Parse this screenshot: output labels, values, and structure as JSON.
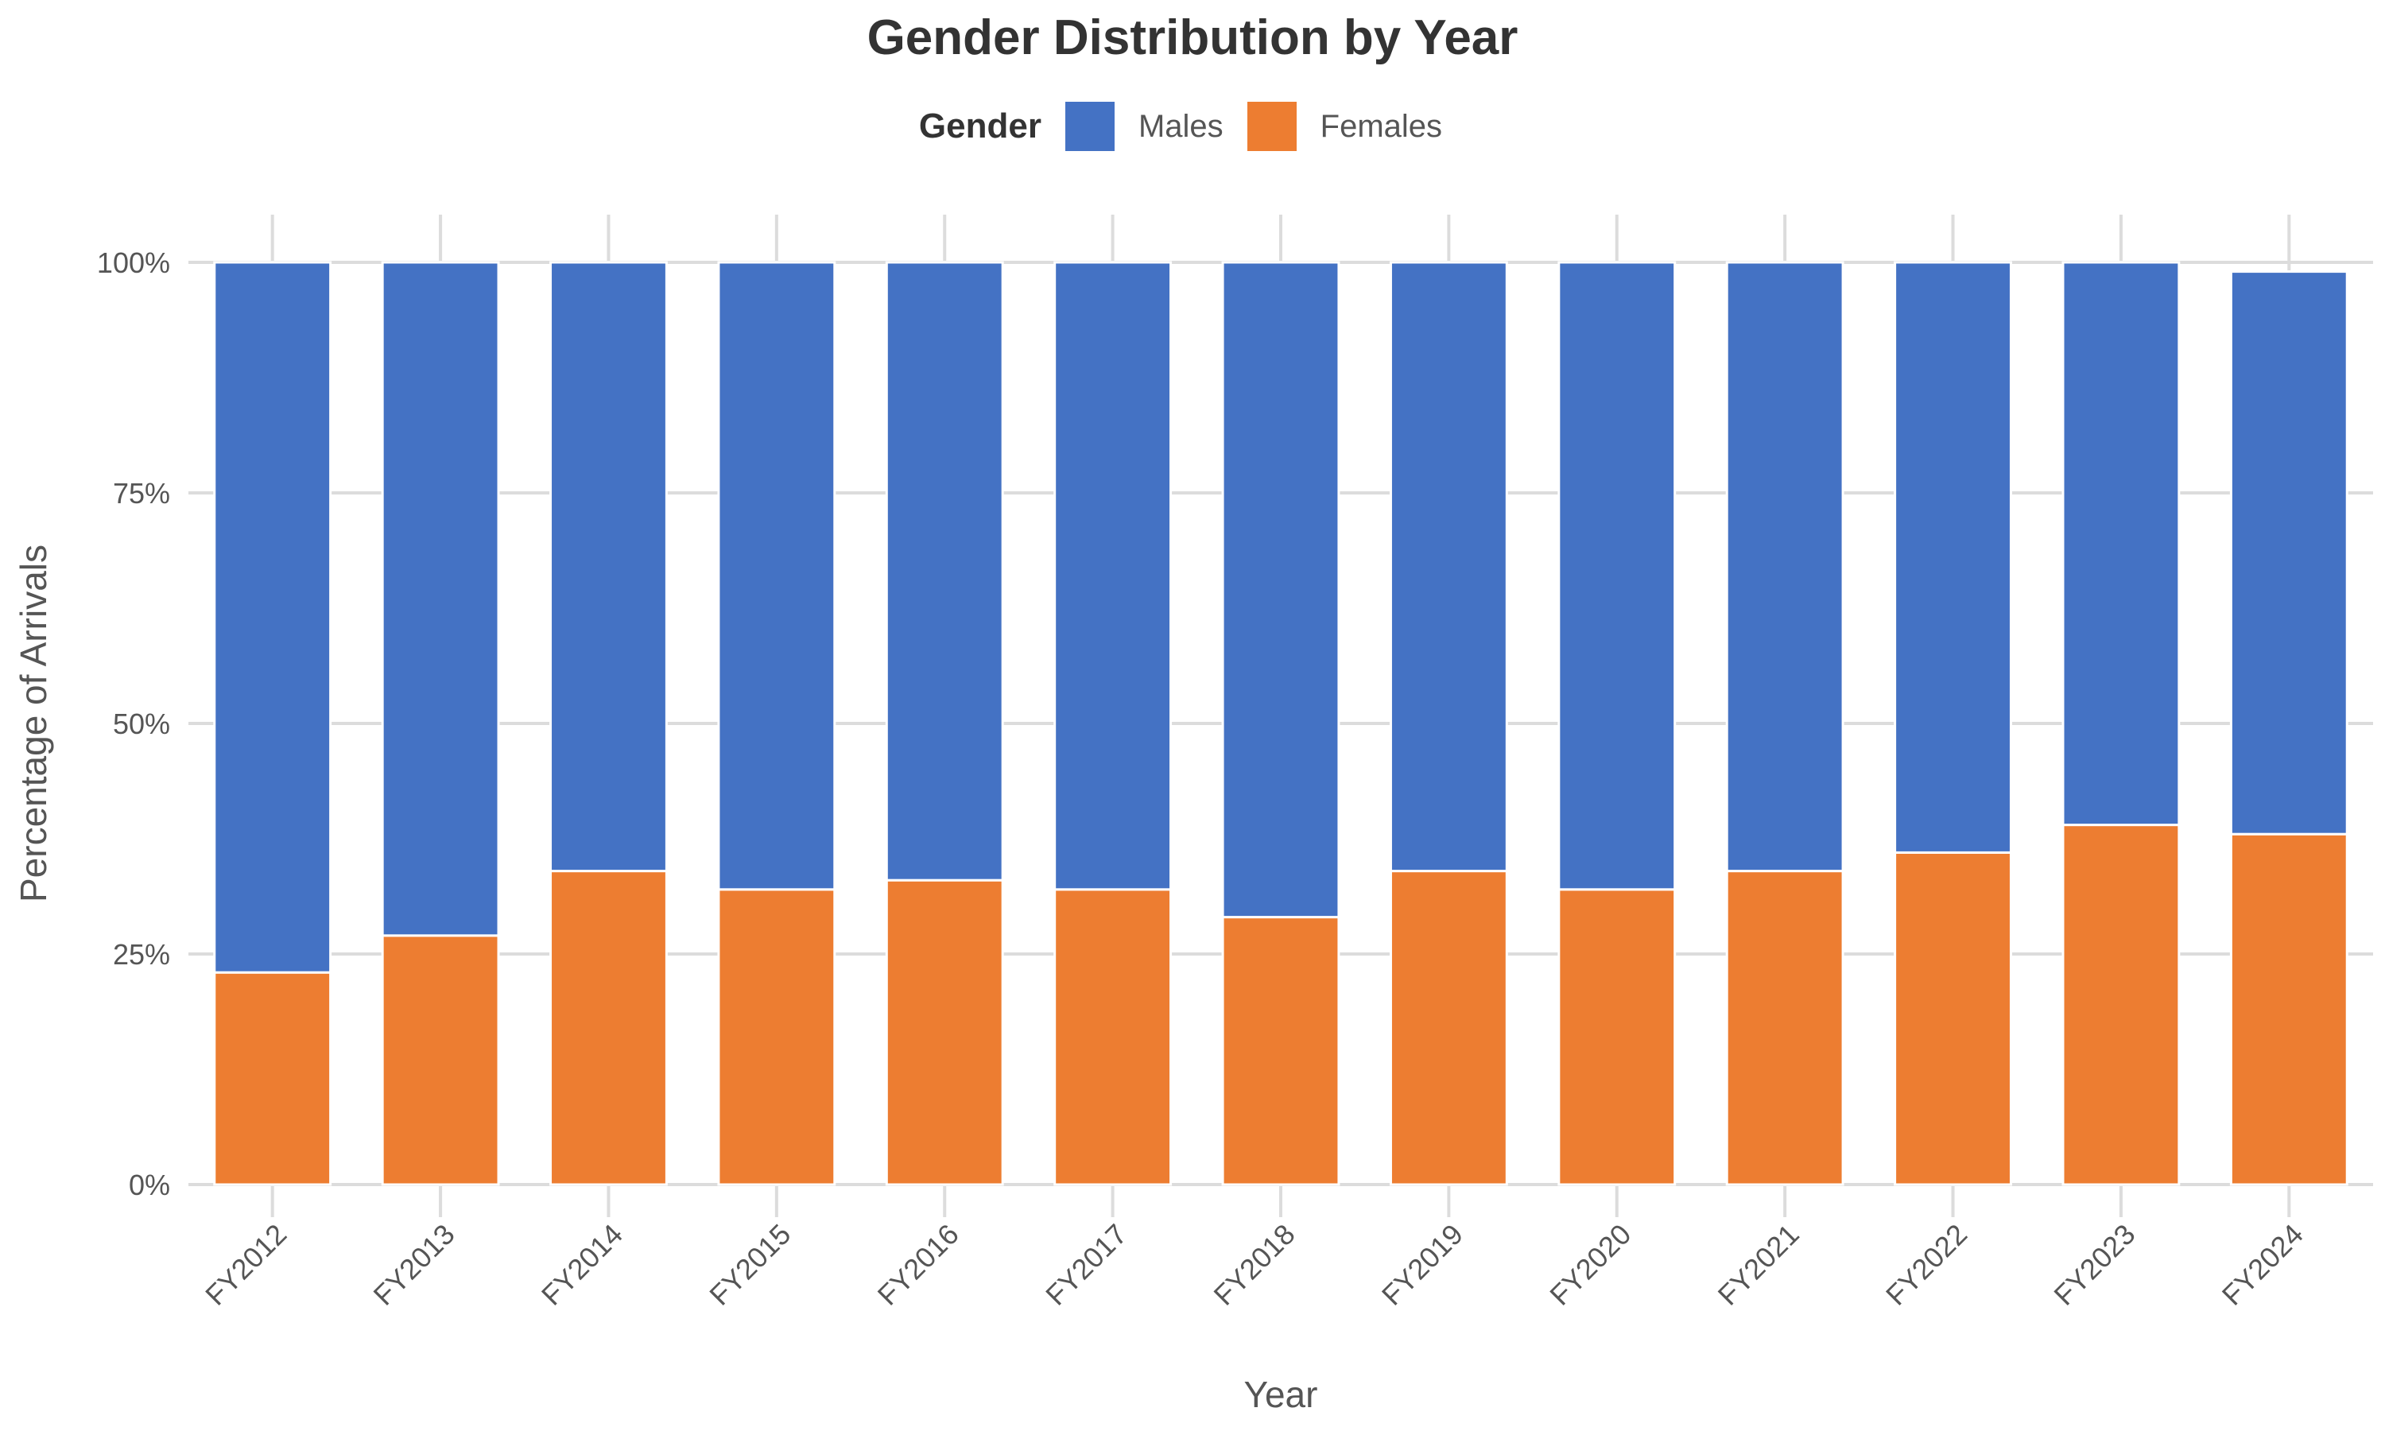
{
  "chart_data": {
    "type": "bar",
    "stacked": true,
    "title": "Gender Distribution by Year",
    "xlabel": "Year",
    "ylabel": "Percentage of Arrivals",
    "legend_title": "Gender",
    "legend_position": "top",
    "categories": [
      "FY2012",
      "FY2013",
      "FY2014",
      "FY2015",
      "FY2016",
      "FY2017",
      "FY2018",
      "FY2019",
      "FY2020",
      "FY2021",
      "FY2022",
      "FY2023",
      "FY2024"
    ],
    "series": [
      {
        "name": "Females",
        "color": "#ED7D31",
        "values": [
          23,
          27,
          34,
          32,
          33,
          32,
          29,
          34,
          32,
          34,
          36,
          39,
          38
        ]
      },
      {
        "name": "Males",
        "color": "#4472C4",
        "values": [
          77,
          73,
          66,
          68,
          67,
          68,
          71,
          66,
          68,
          66,
          64,
          61,
          61
        ]
      }
    ],
    "legend_order": [
      "Males",
      "Females"
    ],
    "ylim": [
      0,
      100
    ],
    "yticks": [
      0,
      25,
      50,
      75,
      100
    ],
    "ytick_labels": [
      "0%",
      "25%",
      "50%",
      "75%",
      "100%"
    ],
    "grid": true
  }
}
